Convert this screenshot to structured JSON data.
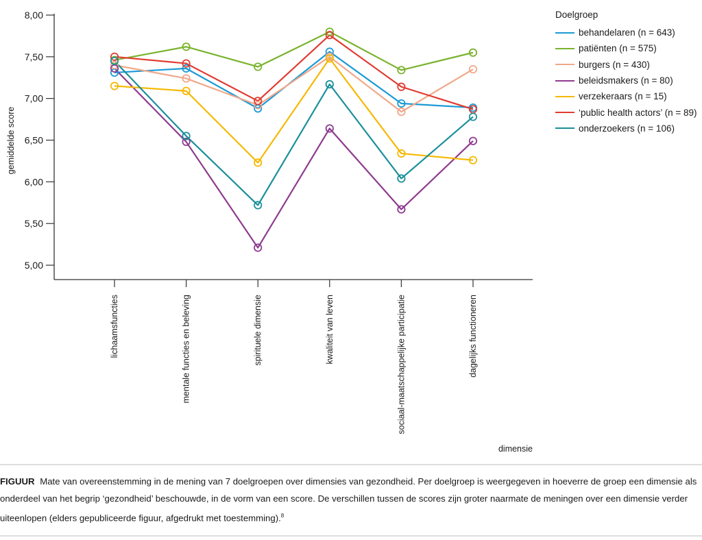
{
  "chart_data": {
    "type": "line",
    "title": "",
    "xlabel": "dimensie",
    "ylabel": "gemiddelde score",
    "ylim": [
      5.0,
      8.0
    ],
    "yticks": [
      "5,00",
      "5,50",
      "6,00",
      "6,50",
      "7,00",
      "7,50",
      "8,00"
    ],
    "ytick_values": [
      5.0,
      5.5,
      6.0,
      6.5,
      7.0,
      7.5,
      8.0
    ],
    "grid": false,
    "markers": "open-circle",
    "legend_title": "Doelgroep",
    "legend_position": "top-right",
    "categories": [
      "lichaamsfuncties",
      "mentale functies en beleving",
      "spirituele dimensie",
      "kwaliteit van leven",
      "sociaal-maatschappelijke participatie",
      "dagelijks functioneren"
    ],
    "series": [
      {
        "name": "behandelaren (n = 643)",
        "color": "#1a9ad6",
        "values": [
          7.31,
          7.36,
          6.88,
          7.56,
          6.94,
          6.89
        ]
      },
      {
        "name": "patiënten (n = 575)",
        "color": "#7ab32e",
        "values": [
          7.46,
          7.62,
          7.38,
          7.8,
          7.34,
          7.55
        ]
      },
      {
        "name": "burgers (n = 430)",
        "color": "#f0a88a",
        "values": [
          7.4,
          7.24,
          6.92,
          7.5,
          6.84,
          7.35
        ]
      },
      {
        "name": "beleidsmakers (n = 80)",
        "color": "#8e3a8f",
        "values": [
          7.36,
          6.48,
          5.21,
          6.64,
          5.67,
          6.49
        ]
      },
      {
        "name": "verzekeraars (n = 15)",
        "color": "#f5b800",
        "values": [
          7.15,
          7.09,
          6.23,
          7.48,
          6.34,
          6.26
        ]
      },
      {
        "name": "‘public health actors’ (n = 89)",
        "color": "#e03c31",
        "values": [
          7.5,
          7.42,
          6.97,
          7.76,
          7.14,
          6.87
        ]
      },
      {
        "name": "onderzoekers (n = 106)",
        "color": "#1a8f9a",
        "values": [
          7.45,
          6.55,
          5.72,
          7.17,
          6.04,
          6.78
        ]
      }
    ]
  },
  "caption": {
    "label": "FIGUUR",
    "text": "Mate van overeenstemming in de mening van 7 doelgroepen over dimensies van gezondheid. Per doelgroep is weergegeven in hoeverre de groep een dimensie als onderdeel van het begrip ‘gezondheid’ beschouwde, in de vorm van een score. De verschillen tussen de scores zijn groter naarmate de meningen over een dimensie verder uiteenlopen (elders gepubliceerde figuur, afgedrukt met toestemming).",
    "footnote": "8"
  }
}
